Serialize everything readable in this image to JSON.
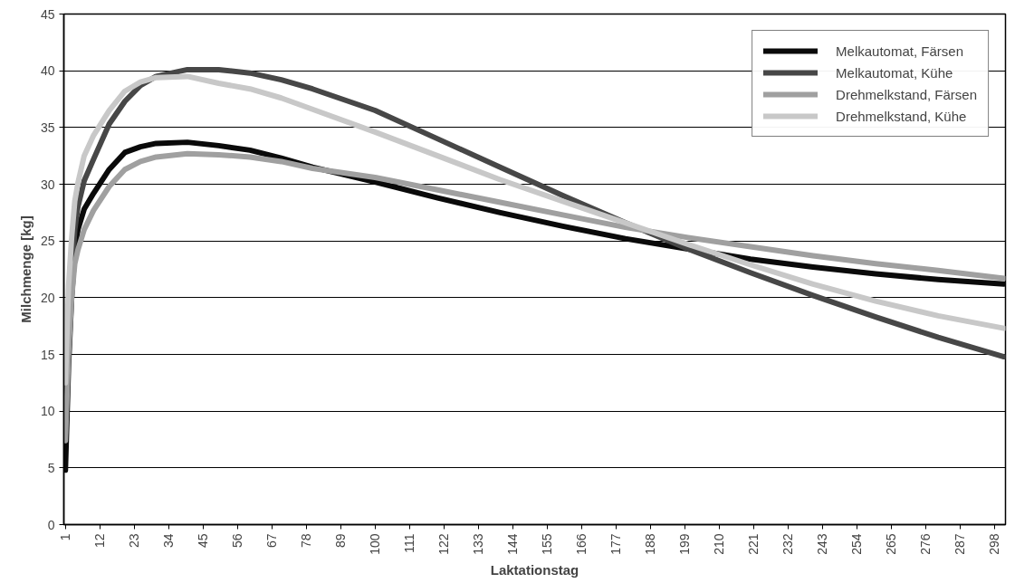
{
  "chart_data": {
    "type": "line",
    "xlabel": "Laktationstag",
    "ylabel": "Milchmenge [kg]",
    "x": [
      1,
      2,
      3,
      4,
      5,
      7,
      10,
      15,
      20,
      25,
      30,
      40,
      50,
      60,
      70,
      80,
      100,
      120,
      140,
      160,
      180,
      200,
      220,
      240,
      260,
      280,
      301
    ],
    "series": [
      {
        "name": "Melkautomat, Färsen",
        "color": "#0a0a0a",
        "values": [
          4.8,
          14,
          20,
          24,
          26,
          27.8,
          29.2,
          31.3,
          32.8,
          33.3,
          33.6,
          33.7,
          33.4,
          33.0,
          32.3,
          31.5,
          30.2,
          28.8,
          27.5,
          26.3,
          25.2,
          24.3,
          23.4,
          22.7,
          22.1,
          21.6,
          21.2
        ]
      },
      {
        "name": "Melkautomat, Kühe",
        "color": "#474747",
        "values": [
          8,
          17,
          22,
          26,
          28,
          30.3,
          32.2,
          35.3,
          37.3,
          38.7,
          39.5,
          40.1,
          40.1,
          39.8,
          39.2,
          38.4,
          36.5,
          34,
          31.5,
          29,
          26.6,
          24.3,
          22.2,
          20.2,
          18.3,
          16.5,
          14.8
        ]
      },
      {
        "name": "Drehmelkstand, Färsen",
        "color": "#a0a0a0",
        "values": [
          7.4,
          15,
          20,
          23,
          24.2,
          26,
          27.7,
          29.8,
          31.3,
          32,
          32.4,
          32.7,
          32.6,
          32.4,
          32,
          31.4,
          30.6,
          29.5,
          28.4,
          27.3,
          26.2,
          25.3,
          24.5,
          23.7,
          23,
          22.4,
          21.7
        ]
      },
      {
        "name": "Drehmelkstand, Kühe",
        "color": "#c8c8c8",
        "values": [
          12.5,
          21,
          25.3,
          28.5,
          30.1,
          32.5,
          34.3,
          36.5,
          38.2,
          39,
          39.4,
          39.5,
          38.9,
          38.4,
          37.6,
          36.6,
          34.6,
          32.5,
          30.4,
          28.5,
          26.6,
          24.7,
          22.9,
          21.2,
          19.7,
          18.4,
          17.3
        ]
      }
    ],
    "xlim": [
      0.5,
      301.5
    ],
    "xticks": [
      1,
      12,
      23,
      34,
      45,
      56,
      67,
      78,
      89,
      100,
      111,
      122,
      133,
      144,
      155,
      166,
      177,
      188,
      199,
      210,
      221,
      232,
      243,
      254,
      265,
      276,
      287,
      298
    ],
    "ylim": [
      0,
      45
    ],
    "yticks": [
      0,
      5,
      10,
      15,
      20,
      25,
      30,
      35,
      40,
      45
    ],
    "grid": "y",
    "legend": "top right",
    "line_style": "solid"
  }
}
